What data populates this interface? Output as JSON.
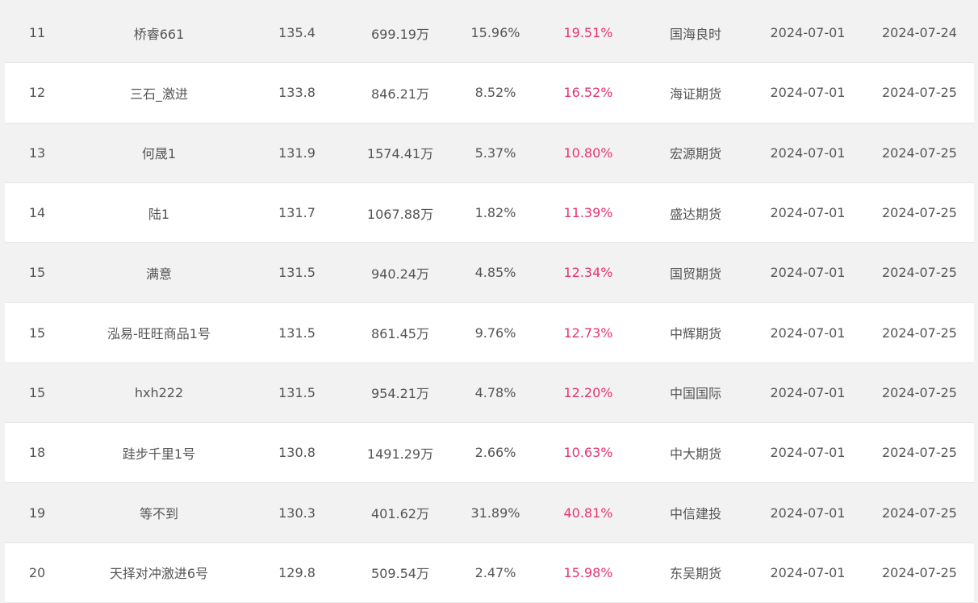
{
  "colors": {
    "accent_pct": "#e8336d",
    "text": "#555555",
    "row_alt": "#f2f2f2",
    "row_base": "#ffffff"
  },
  "rows": [
    {
      "rank": "11",
      "name": "桥睿661",
      "score": "135.4",
      "equity": "699.19万",
      "drawdown": "15.96%",
      "return": "19.51%",
      "broker": "国海良时",
      "start": "2024-07-01",
      "end": "2024-07-24"
    },
    {
      "rank": "12",
      "name": "三石_激进",
      "score": "133.8",
      "equity": "846.21万",
      "drawdown": "8.52%",
      "return": "16.52%",
      "broker": "海证期货",
      "start": "2024-07-01",
      "end": "2024-07-25"
    },
    {
      "rank": "13",
      "name": "何晟1",
      "score": "131.9",
      "equity": "1574.41万",
      "drawdown": "5.37%",
      "return": "10.80%",
      "broker": "宏源期货",
      "start": "2024-07-01",
      "end": "2024-07-25"
    },
    {
      "rank": "14",
      "name": "陆1",
      "score": "131.7",
      "equity": "1067.88万",
      "drawdown": "1.82%",
      "return": "11.39%",
      "broker": "盛达期货",
      "start": "2024-07-01",
      "end": "2024-07-25"
    },
    {
      "rank": "15",
      "name": "满意",
      "score": "131.5",
      "equity": "940.24万",
      "drawdown": "4.85%",
      "return": "12.34%",
      "broker": "国贸期货",
      "start": "2024-07-01",
      "end": "2024-07-25"
    },
    {
      "rank": "15",
      "name": "泓易-旺旺商品1号",
      "score": "131.5",
      "equity": "861.45万",
      "drawdown": "9.76%",
      "return": "12.73%",
      "broker": "中辉期货",
      "start": "2024-07-01",
      "end": "2024-07-25"
    },
    {
      "rank": "15",
      "name": "hxh222",
      "score": "131.5",
      "equity": "954.21万",
      "drawdown": "4.78%",
      "return": "12.20%",
      "broker": "中国国际",
      "start": "2024-07-01",
      "end": "2024-07-25"
    },
    {
      "rank": "18",
      "name": "跬步千里1号",
      "score": "130.8",
      "equity": "1491.29万",
      "drawdown": "2.66%",
      "return": "10.63%",
      "broker": "中大期货",
      "start": "2024-07-01",
      "end": "2024-07-25"
    },
    {
      "rank": "19",
      "name": "等不到",
      "score": "130.3",
      "equity": "401.62万",
      "drawdown": "31.89%",
      "return": "40.81%",
      "broker": "中信建投",
      "start": "2024-07-01",
      "end": "2024-07-25"
    },
    {
      "rank": "20",
      "name": "天择对冲激进6号",
      "score": "129.8",
      "equity": "509.54万",
      "drawdown": "2.47%",
      "return": "15.98%",
      "broker": "东吴期货",
      "start": "2024-07-01",
      "end": "2024-07-25"
    }
  ]
}
